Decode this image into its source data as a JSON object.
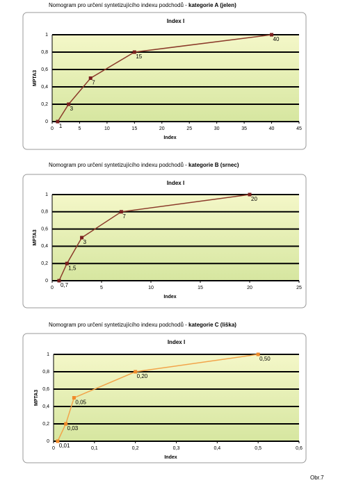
{
  "chart_data": [
    {
      "type": "line",
      "caption": "Nomogram pro určení syntetizujícího indexu podchodů -",
      "category": "kategorie A (jelen)",
      "title": "Index I",
      "x_label": "Index",
      "y_label": "MPTA3",
      "color": "#8b3a2a",
      "marker_color": "#7a1f1f",
      "x": [
        1,
        3,
        7,
        15,
        40
      ],
      "values": [
        0,
        0.2,
        0.5,
        0.8,
        1
      ],
      "xlim": [
        0,
        45
      ],
      "xticks": [
        0,
        5,
        10,
        15,
        20,
        25,
        30,
        35,
        40,
        45
      ],
      "ylim": [
        0,
        1
      ],
      "yticks": [
        0,
        {
          "value": 0.2,
          "label": "0,2"
        },
        {
          "value": 0.4,
          "label": "0,4"
        },
        {
          "value": 0.6,
          "label": "0,6"
        },
        {
          "value": 0.8,
          "label": "0,8"
        },
        1
      ],
      "grid": true
    },
    {
      "type": "line",
      "caption": "Nomogram pro určení syntetizujícího indexu podchodů -",
      "category": "kategorie B (srnec)",
      "title": "Index I",
      "x_label": "Index",
      "y_label": "MPTA3",
      "color": "#8b3a2a",
      "marker_color": "#7a1f1f",
      "x": [
        0.7,
        1.5,
        3,
        7,
        20
      ],
      "x_labels": [
        "0,7",
        "1,5",
        "3",
        "7",
        "20"
      ],
      "values": [
        0,
        0.2,
        0.5,
        0.8,
        1
      ],
      "xlim": [
        0,
        25
      ],
      "xticks": [
        0,
        5,
        10,
        15,
        20,
        25
      ],
      "ylim": [
        0,
        1
      ],
      "yticks": [
        0,
        {
          "value": 0.2,
          "label": "0,2"
        },
        {
          "value": 0.4,
          "label": "0,4"
        },
        {
          "value": 0.6,
          "label": "0,6"
        },
        {
          "value": 0.8,
          "label": "0,8"
        },
        1
      ],
      "grid": true
    },
    {
      "type": "line",
      "caption": "Nomogram pro určení syntetizujícího indexu podchodů -",
      "category": "kategorie C (liška)",
      "title": "Index I",
      "x_label": "Index",
      "y_label": "MPTA3",
      "color": "#f2a44a",
      "marker_color": "#f08a2a",
      "x": [
        0.01,
        0.03,
        0.05,
        0.2,
        0.5
      ],
      "x_labels": [
        "0,01",
        "0,03",
        "0,05",
        "0,20",
        "0,50"
      ],
      "values": [
        0,
        0.2,
        0.5,
        0.8,
        1
      ],
      "xlim": [
        0,
        0.6
      ],
      "xticks": [
        0,
        {
          "value": 0.1,
          "label": "0,1"
        },
        {
          "value": 0.2,
          "label": "0,2"
        },
        {
          "value": 0.3,
          "label": "0,3"
        },
        {
          "value": 0.4,
          "label": "0,4"
        },
        {
          "value": 0.5,
          "label": "0,5"
        },
        {
          "value": 0.6,
          "label": "0,6"
        }
      ],
      "ylim": [
        0,
        1
      ],
      "yticks": [
        0,
        {
          "value": 0.2,
          "label": "0,2"
        },
        {
          "value": 0.4,
          "label": "0,4"
        },
        {
          "value": 0.6,
          "label": "0,6"
        },
        {
          "value": 0.8,
          "label": "0,8"
        },
        1
      ],
      "grid": true
    }
  ],
  "figure_label": "Obr.7"
}
